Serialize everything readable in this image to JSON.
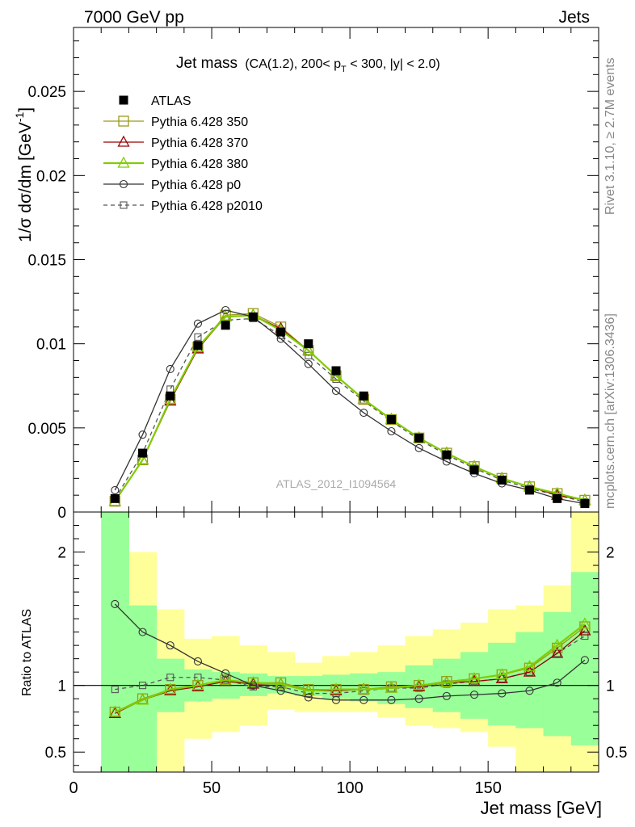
{
  "header": {
    "left": "7000 GeV pp",
    "right": "Jets",
    "side_top": "Rivet 3.1.10, ≥ 2.7M events",
    "side_bottom": "mcplots.cern.ch [arXiv:1306.3436]"
  },
  "title": {
    "main": "Jet mass",
    "detail_a": "(CA(1.2), 200< p",
    "detail_sub": "T",
    "detail_b": " < 300, |y| < 2.0)"
  },
  "watermark": "ATLAS_2012_I1094564",
  "colors": {
    "band_inner": "#99ff99",
    "band_outer": "#ffff99",
    "py350": "#9a9a1a",
    "py370": "#990000",
    "py380": "#7fcc00",
    "pyp0": "#333333",
    "pyp2010": "#555555"
  },
  "chart_data": [
    {
      "type": "line",
      "ylabel": "1/σ dσ/dm",
      "ylabel_unit": "[GeV",
      "ylabel_sup": "-1",
      "ylabel_close": "]",
      "xlim": [
        0,
        190
      ],
      "ylim": [
        0,
        0.0288
      ],
      "y_ticks": [
        {
          "v": 0,
          "label": "0"
        },
        {
          "v": 0.005,
          "label": "0.005"
        },
        {
          "v": 0.01,
          "label": "0.01"
        },
        {
          "v": 0.015,
          "label": "0.015"
        },
        {
          "v": 0.02,
          "label": "0.02"
        },
        {
          "v": 0.025,
          "label": "0.025"
        }
      ],
      "x": [
        15,
        25,
        35,
        45,
        55,
        65,
        75,
        85,
        95,
        105,
        115,
        125,
        135,
        145,
        155,
        165,
        175,
        185
      ],
      "data": {
        "name": "ATLAS",
        "values": [
          0.0008,
          0.0035,
          0.0069,
          0.0099,
          0.0111,
          0.0116,
          0.0107,
          0.01,
          0.0084,
          0.0069,
          0.0055,
          0.0044,
          0.0034,
          0.0025,
          0.0019,
          0.0013,
          0.0008,
          0.0005
        ]
      },
      "series": [
        {
          "name": "Pythia 6.428 350",
          "color_key": "py350",
          "marker": "square-open",
          "dash": "",
          "values": [
            0.00064,
            0.0031,
            0.0067,
            0.0098,
            0.0117,
            0.0118,
            0.011,
            0.0096,
            0.0081,
            0.0067,
            0.0055,
            0.0044,
            0.0035,
            0.0027,
            0.002,
            0.0015,
            0.0011,
            0.0007
          ]
        },
        {
          "name": "Pythia 6.428 370",
          "color_key": "py370",
          "marker": "triangle-open",
          "dash": "",
          "values": [
            0.00064,
            0.0031,
            0.0066,
            0.0097,
            0.0116,
            0.0117,
            0.0109,
            0.0096,
            0.0081,
            0.0067,
            0.0055,
            0.0044,
            0.0035,
            0.0027,
            0.002,
            0.0015,
            0.001,
            0.0007
          ]
        },
        {
          "name": "Pythia 6.428 380",
          "color_key": "py380",
          "marker": "triangle-open",
          "dash": "",
          "values": [
            0.00064,
            0.0031,
            0.0067,
            0.0098,
            0.0116,
            0.0117,
            0.0108,
            0.0096,
            0.0081,
            0.0067,
            0.0055,
            0.0044,
            0.0035,
            0.0027,
            0.002,
            0.0015,
            0.0011,
            0.0007
          ]
        },
        {
          "name": "Pythia 6.428 p0",
          "color_key": "pyp0",
          "marker": "circle-open",
          "dash": "",
          "values": [
            0.0013,
            0.0046,
            0.0085,
            0.0112,
            0.012,
            0.0116,
            0.0103,
            0.0088,
            0.0072,
            0.0059,
            0.0048,
            0.0038,
            0.003,
            0.0023,
            0.0017,
            0.0013,
            0.0008,
            0.0005
          ]
        },
        {
          "name": "Pythia 6.428 p2010",
          "color_key": "pyp2010",
          "marker": "square-small-open",
          "dash": "5,4",
          "values": [
            0.00078,
            0.0035,
            0.0073,
            0.0104,
            0.0114,
            0.0115,
            0.0105,
            0.0093,
            0.0079,
            0.0066,
            0.0054,
            0.0043,
            0.0034,
            0.0026,
            0.0019,
            0.0014,
            0.001,
            0.0006
          ]
        }
      ]
    },
    {
      "type": "line",
      "ylabel": "Ratio to ATLAS",
      "xlabel": "Jet mass [GeV]",
      "xlim": [
        0,
        190
      ],
      "ylim": [
        0.35,
        2.3
      ],
      "y_ticks": [
        {
          "v": 0.5,
          "label": "0.5"
        },
        {
          "v": 1,
          "label": "1"
        },
        {
          "v": 2,
          "label": "2"
        }
      ],
      "x_ticks": [
        {
          "v": 0,
          "label": "0"
        },
        {
          "v": 50,
          "label": "50"
        },
        {
          "v": 100,
          "label": "100"
        },
        {
          "v": 150,
          "label": "150"
        }
      ],
      "bin_edges": [
        10,
        20,
        30,
        40,
        50,
        60,
        70,
        80,
        90,
        100,
        110,
        120,
        130,
        140,
        150,
        160,
        170,
        180,
        190
      ],
      "band_inner": [
        [
          0.35,
          2.3
        ],
        [
          0.35,
          1.6
        ],
        [
          0.8,
          1.2
        ],
        [
          0.88,
          1.12
        ],
        [
          0.9,
          1.1
        ],
        [
          0.92,
          1.09
        ],
        [
          0.94,
          1.07
        ],
        [
          0.92,
          1.07
        ],
        [
          0.9,
          1.08
        ],
        [
          0.88,
          1.09
        ],
        [
          0.86,
          1.1
        ],
        [
          0.83,
          1.15
        ],
        [
          0.8,
          1.2
        ],
        [
          0.75,
          1.25
        ],
        [
          0.7,
          1.32
        ],
        [
          0.68,
          1.4
        ],
        [
          0.62,
          1.55
        ],
        [
          0.55,
          1.85
        ]
      ],
      "band_outer": [
        [
          0.35,
          2.3
        ],
        [
          0.35,
          2.0
        ],
        [
          0.35,
          1.57
        ],
        [
          0.6,
          1.35
        ],
        [
          0.65,
          1.37
        ],
        [
          0.7,
          1.3
        ],
        [
          0.82,
          1.25
        ],
        [
          0.8,
          1.17
        ],
        [
          0.8,
          1.22
        ],
        [
          0.8,
          1.25
        ],
        [
          0.76,
          1.3
        ],
        [
          0.7,
          1.37
        ],
        [
          0.68,
          1.42
        ],
        [
          0.65,
          1.47
        ],
        [
          0.54,
          1.57
        ],
        [
          0.35,
          1.6
        ],
        [
          0.35,
          1.75
        ],
        [
          0.35,
          2.3
        ]
      ],
      "series": [
        {
          "name": "Pythia 6.428 350",
          "values": [
            0.8,
            0.9,
            0.97,
            1.0,
            1.04,
            1.02,
            1.02,
            0.97,
            0.97,
            0.97,
            0.99,
            1.0,
            1.03,
            1.05,
            1.08,
            1.13,
            1.28,
            1.44
          ]
        },
        {
          "name": "Pythia 6.428 370",
          "values": [
            0.79,
            0.89,
            0.96,
            0.99,
            1.03,
            1.01,
            1.01,
            0.96,
            0.96,
            0.97,
            0.98,
            0.99,
            1.02,
            1.03,
            1.05,
            1.1,
            1.24,
            1.41
          ]
        },
        {
          "name": "Pythia 6.428 380",
          "values": [
            0.8,
            0.89,
            0.97,
            1.0,
            1.04,
            1.02,
            1.01,
            0.96,
            0.97,
            0.97,
            0.98,
            1.0,
            1.02,
            1.05,
            1.08,
            1.14,
            1.3,
            1.46
          ]
        },
        {
          "name": "Pythia 6.428 p0",
          "values": [
            1.61,
            1.4,
            1.3,
            1.18,
            1.09,
            1.0,
            0.96,
            0.91,
            0.89,
            0.89,
            0.89,
            0.9,
            0.92,
            0.93,
            0.94,
            0.96,
            1.02,
            1.19
          ]
        },
        {
          "name": "Pythia 6.428 p2010",
          "values": [
            0.97,
            1.0,
            1.06,
            1.06,
            1.04,
            0.99,
            0.99,
            0.94,
            0.94,
            0.96,
            0.98,
            0.98,
            1.01,
            1.03,
            1.05,
            1.1,
            1.24,
            1.37
          ]
        }
      ]
    }
  ]
}
